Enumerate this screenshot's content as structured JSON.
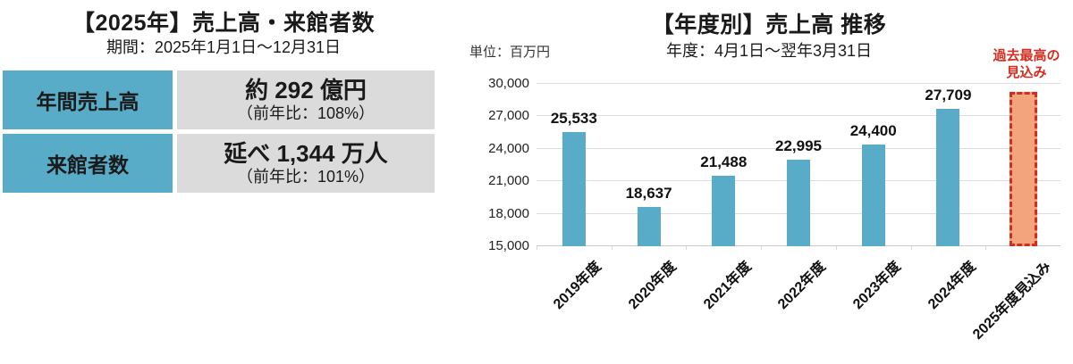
{
  "left_panel": {
    "title": "【2025年】売上高・来館者数",
    "subtitle": "期間：2025年1月1日～12月31日",
    "table": {
      "rows": [
        {
          "label": "年間売上高",
          "value": "約 292 億円",
          "note": "（前年比：108%）"
        },
        {
          "label": "来館者数",
          "value": "延べ 1,344 万人",
          "note": "（前年比：101%）"
        }
      ]
    }
  },
  "right_panel": {
    "title": "【年度別】売上高 推移",
    "subtitle": "年度：4月1日～翌年3月31日",
    "unit_label": "単位：百万円",
    "annotation_line1": "過去最高の",
    "annotation_line2": "見込み"
  },
  "chart_data": {
    "type": "bar",
    "title": "【年度別】売上高 推移",
    "unit": "百万円",
    "categories": [
      "2019年度",
      "2020年度",
      "2021年度",
      "2022年度",
      "2023年度",
      "2024年度",
      "2025年度見込み"
    ],
    "values": [
      25533,
      18637,
      21488,
      22995,
      24400,
      27709,
      null
    ],
    "data_labels": [
      "25,533",
      "18,637",
      "21,488",
      "22,995",
      "24,400",
      "27,709",
      ""
    ],
    "forecast": {
      "index": 6,
      "estimated_value": 29280,
      "label": "2025年度見込み",
      "annotation": "過去最高の見込み",
      "style": "dashed-outline"
    },
    "ylim": [
      15000,
      30000
    ],
    "yticks": [
      15000,
      18000,
      21000,
      24000,
      27000,
      30000
    ],
    "ytick_labels": [
      "15,000",
      "18,000",
      "21,000",
      "24,000",
      "27,000",
      "30,000"
    ],
    "grid": true,
    "legend": false,
    "colors": {
      "bar": "#58ACC8",
      "forecast_fill": "#F4A47D",
      "forecast_border": "#D42D20",
      "grid": "#DCDCDC",
      "annotation": "#D42D20"
    }
  },
  "colors": {
    "table_header_bg": "#58ACC8",
    "table_value_bg": "#DBDBDB",
    "accent_red": "#D42D20"
  }
}
